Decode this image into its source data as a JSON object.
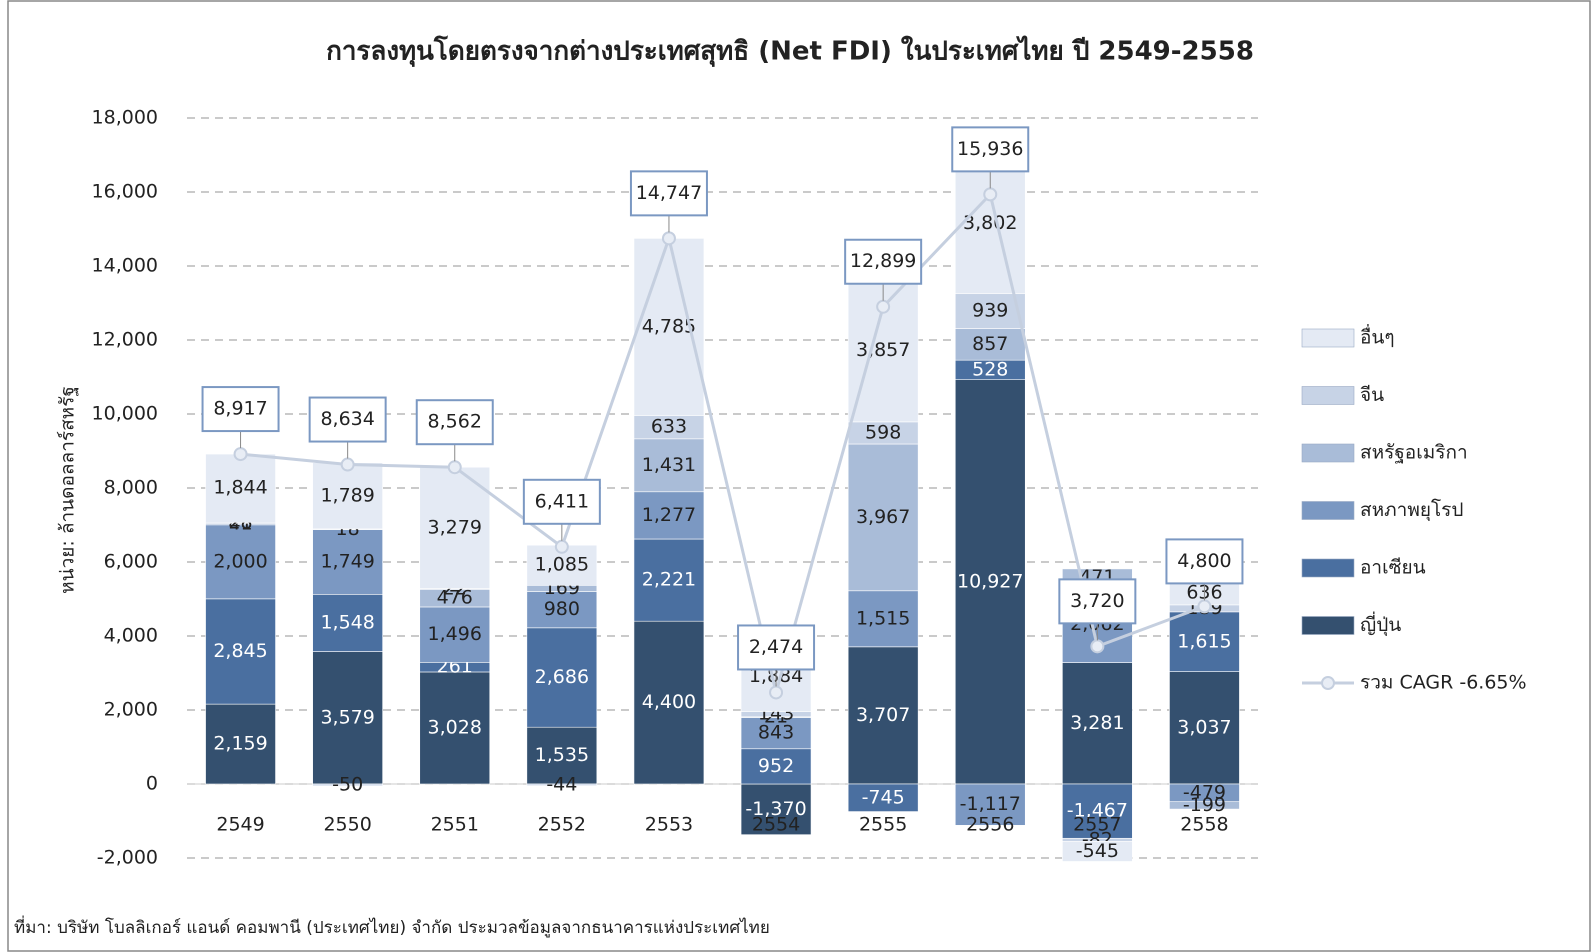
{
  "chart_data": {
    "type": "stacked-bar-line",
    "title": "การลงทุนโดยตรงจากต่างประเทศสุทธิ  (Net FDI) ในประเทศไทย  ปี 2549-2558",
    "y_label": "หน่วย: ล้านดอลลาร์สหรัฐ",
    "source": "ที่มา: บริษัท โบลลิเกอร์ แอนด์ คอมพานี (ประเทศไทย) จำกัด ประมวลข้อมูลจากธนาคารแห่งประเทศไทย",
    "categories": [
      "2549",
      "2550",
      "2551",
      "2552",
      "2553",
      "2554",
      "2555",
      "2556",
      "2557",
      "2558"
    ],
    "series": [
      {
        "name": "ญี่ปุ่น",
        "color": "#34506f",
        "values": [
          2159,
          3579,
          3028,
          1535,
          4400,
          -1370,
          3707,
          10927,
          3281,
          3037
        ],
        "value_labels": [
          "2,159",
          "3,579",
          "3,028",
          "1,535",
          "4,400",
          "-1,370",
          "3,707",
          "10,927",
          "3,281",
          "3,037"
        ]
      },
      {
        "name": "อาเซียน",
        "color": "#4a6fa0",
        "values": [
          2845,
          1548,
          261,
          2686,
          2221,
          952,
          -745,
          528,
          -1467,
          1615
        ],
        "value_labels": [
          "2,845",
          "1,548",
          "261",
          "2,686",
          "2,221",
          "952",
          "-745",
          "528",
          "-1,467",
          "1,615"
        ]
      },
      {
        "name": "สหภาพยุโรป",
        "color": "#7b98c2",
        "values": [
          2000,
          1749,
          1496,
          980,
          1277,
          843,
          1515,
          -1117,
          2062,
          -479
        ],
        "value_labels": [
          "2,000",
          "1,749",
          "1,496",
          "980",
          "1,277",
          "843",
          "1,515",
          "-1,117",
          "2,062",
          "-479"
        ]
      },
      {
        "name": "สหรัฐอเมริกา",
        "color": "#a9bcd8",
        "values": [
          41,
          18,
          476,
          169,
          1431,
          21,
          3967,
          857,
          471,
          -199
        ],
        "value_labels": [
          "41",
          "18",
          "476",
          "169",
          "1,431",
          "21",
          "3,967",
          "857",
          "471",
          "-199"
        ]
      },
      {
        "name": "จีน",
        "color": "#c7d3e6",
        "values": [
          28,
          -50,
          22,
          -44,
          633,
          143,
          598,
          939,
          -82,
          189
        ],
        "value_labels": [
          "28",
          "-50",
          "22",
          "-44",
          "633",
          "143",
          "598",
          "939",
          "-82",
          "189"
        ]
      },
      {
        "name": "อื่นๆ",
        "color": "#e4eaf4",
        "values": [
          1844,
          1789,
          3279,
          1085,
          4785,
          1884,
          3857,
          3802,
          -545,
          636
        ],
        "value_labels": [
          "1,844",
          "1,789",
          "3,279",
          "1,085",
          "4,785",
          "1,884",
          "3,857",
          "3,802",
          "-545",
          "636"
        ]
      }
    ],
    "total": {
      "name": "รวม CAGR -6.65%",
      "color": "#c5cfdf",
      "values": [
        8917,
        8634,
        8562,
        6411,
        14747,
        2474,
        12899,
        15936,
        3720,
        4800
      ],
      "value_labels": [
        "8,917",
        "8,634",
        "8,562",
        "6,411",
        "14,747",
        "2,474",
        "12,899",
        "15,936",
        "3,720",
        "4,800"
      ]
    },
    "ylim": [
      -2000,
      18000
    ],
    "yticks": [
      {
        "value": -2000,
        "label": "-2,000"
      },
      0,
      {
        "value": 2000,
        "label": "2,000"
      },
      {
        "value": 4000,
        "label": "4,000"
      },
      {
        "value": 6000,
        "label": "6,000"
      },
      {
        "value": 8000,
        "label": "8,000"
      },
      {
        "value": 10000,
        "label": "10,000"
      },
      {
        "value": 12000,
        "label": "12,000"
      },
      {
        "value": 14000,
        "label": "14,000"
      },
      {
        "value": 16000,
        "label": "16,000"
      },
      {
        "value": 18000,
        "label": "18,000"
      }
    ],
    "grid": true,
    "legend": "right"
  }
}
